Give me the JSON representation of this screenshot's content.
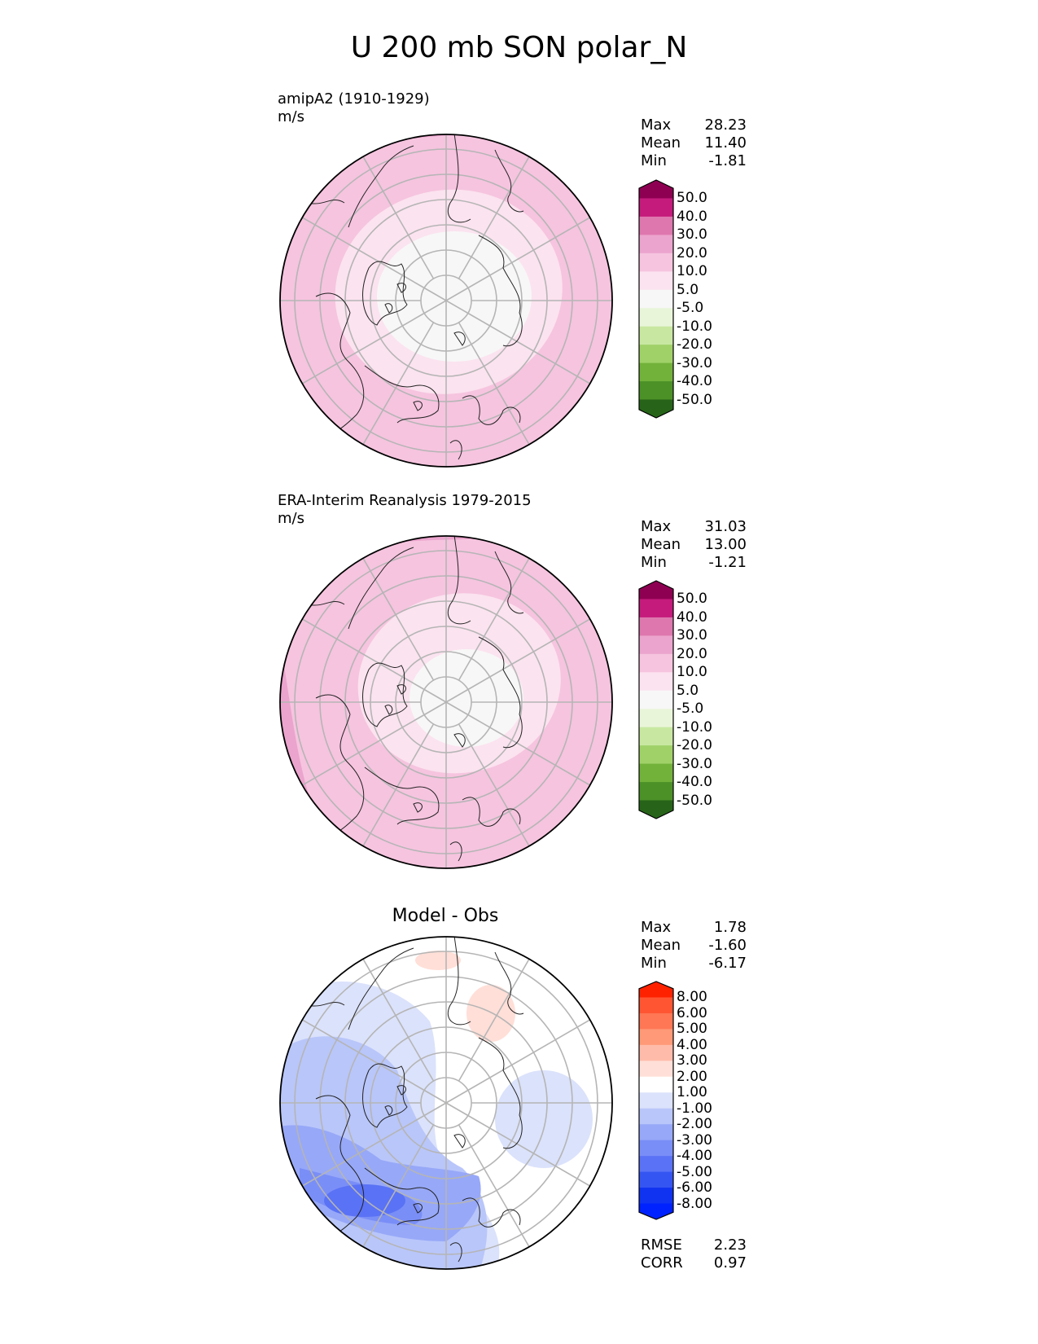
{
  "title": "U 200 mb SON polar_N",
  "panels": [
    {
      "id": "model",
      "label": "amipA2 (1910-1929)",
      "units": "m/s",
      "plot_title": "",
      "stats": [
        {
          "name": "Max",
          "value": "28.23"
        },
        {
          "name": "Mean",
          "value": "11.40"
        },
        {
          "name": "Min",
          "value": "-1.81"
        }
      ]
    },
    {
      "id": "obs",
      "label": "ERA-Interim Reanalysis 1979-2015",
      "units": "m/s",
      "plot_title": "",
      "stats": [
        {
          "name": "Max",
          "value": "31.03"
        },
        {
          "name": "Mean",
          "value": "13.00"
        },
        {
          "name": "Min",
          "value": "-1.21"
        }
      ]
    },
    {
      "id": "diff",
      "label": "",
      "units": "",
      "plot_title": "Model - Obs",
      "stats": [
        {
          "name": "Max",
          "value": "1.78"
        },
        {
          "name": "Mean",
          "value": "-1.60"
        },
        {
          "name": "Min",
          "value": "-6.17"
        }
      ],
      "extra_stats": [
        {
          "name": "RMSE",
          "value": "2.23"
        },
        {
          "name": "CORR",
          "value": "0.97"
        }
      ]
    }
  ],
  "colorbars": {
    "field": {
      "colors": [
        "#8e0152",
        "#c51b7d",
        "#de77ae",
        "#eba4cd",
        "#f6c4df",
        "#fbe3ef",
        "#f7f7f7",
        "#e9f5d9",
        "#c8e8a1",
        "#9fd168",
        "#72b23b",
        "#4b9127",
        "#276419"
      ],
      "ticks": [
        "50.0",
        "40.0",
        "30.0",
        "20.0",
        "10.0",
        "5.0",
        "-5.0",
        "-10.0",
        "-20.0",
        "-30.0",
        "-40.0",
        "-50.0"
      ]
    },
    "diff": {
      "colors": [
        "#ff2200",
        "#ff5533",
        "#ff7755",
        "#ff9977",
        "#ffbbaa",
        "#ffdfd8",
        "#ffffff",
        "#dbe2fb",
        "#b9c6fa",
        "#97a8f8",
        "#7a8ef7",
        "#5a72f5",
        "#3555f3",
        "#1033f1",
        "#0022ff"
      ],
      "ticks": [
        "8.00",
        "6.00",
        "5.00",
        "4.00",
        "3.00",
        "2.00",
        "1.00",
        "-1.00",
        "-2.00",
        "-3.00",
        "-4.00",
        "-5.00",
        "-6.00",
        "-8.00"
      ]
    }
  }
}
